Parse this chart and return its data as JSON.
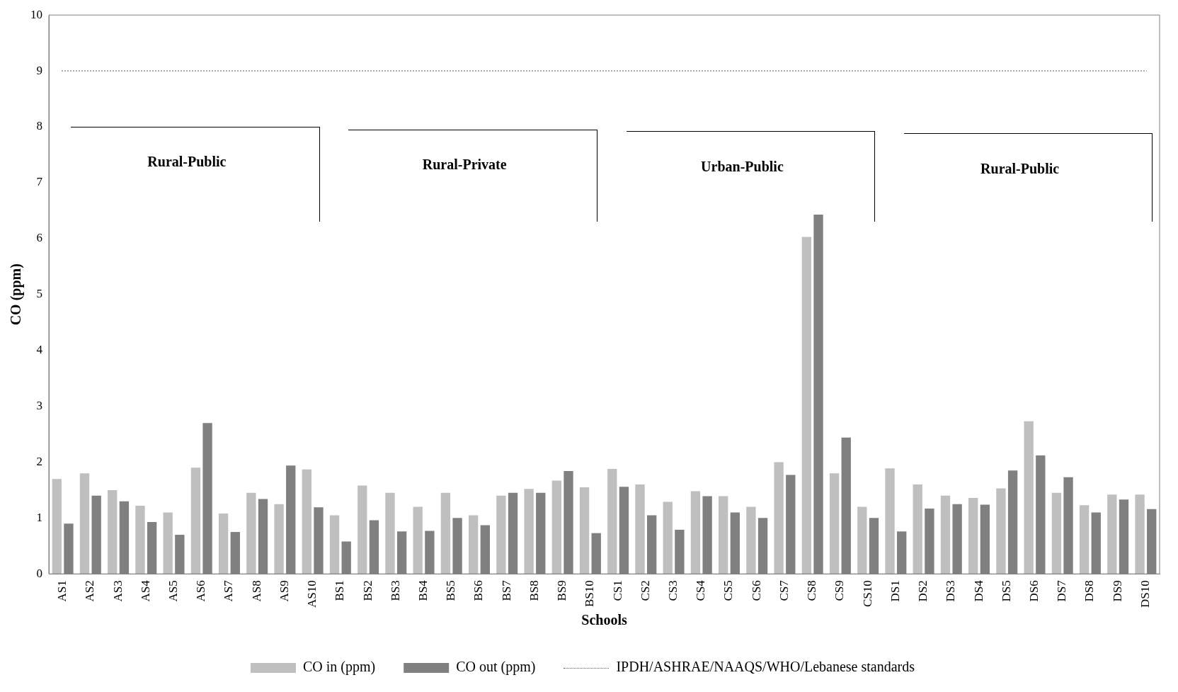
{
  "chart_data": {
    "type": "bar",
    "xlabel": "Schools",
    "ylabel": "CO (ppm)",
    "categories": [
      "AS1",
      "AS2",
      "AS3",
      "AS4",
      "AS5",
      "AS6",
      "AS7",
      "AS8",
      "AS9",
      "AS10",
      "BS1",
      "BS2",
      "BS3",
      "BS4",
      "BS5",
      "BS6",
      "BS7",
      "BS8",
      "BS9",
      "BS10",
      "CS1",
      "CS2",
      "CS3",
      "CS4",
      "CS5",
      "CS6",
      "CS7",
      "CS8",
      "CS9",
      "CS10",
      "DS1",
      "DS2",
      "DS3",
      "DS4",
      "DS5",
      "DS6",
      "DS7",
      "DS8",
      "DS9",
      "DS10"
    ],
    "series": [
      {
        "name": "CO in (ppm)",
        "color": "#bfbfbf",
        "values": [
          1.7,
          1.8,
          1.5,
          1.22,
          1.1,
          1.9,
          1.08,
          1.45,
          1.25,
          1.87,
          1.05,
          1.58,
          1.45,
          1.2,
          1.45,
          1.05,
          1.4,
          1.52,
          1.67,
          1.55,
          1.88,
          1.6,
          1.29,
          1.48,
          1.39,
          1.2,
          2.0,
          6.03,
          1.8,
          1.2,
          1.89,
          1.6,
          1.4,
          1.36,
          1.53,
          2.73,
          1.45,
          1.23,
          1.42,
          1.42
        ]
      },
      {
        "name": "CO out (ppm)",
        "color": "#808080",
        "values": [
          0.9,
          1.4,
          1.3,
          0.93,
          0.7,
          2.7,
          0.75,
          1.34,
          1.94,
          1.19,
          0.58,
          0.96,
          0.76,
          0.77,
          1.0,
          0.87,
          1.45,
          1.45,
          1.84,
          0.73,
          1.56,
          1.05,
          0.79,
          1.39,
          1.1,
          1.0,
          1.77,
          6.43,
          2.44,
          1.0,
          0.76,
          1.17,
          1.25,
          1.24,
          1.85,
          2.12,
          1.73,
          1.1,
          1.33,
          1.16
        ]
      }
    ],
    "ref_lines": [
      {
        "axis": "y",
        "value": 9,
        "label": "IPDH/ASHRAE/NAAQS/WHO/Lebanese standards",
        "color": "#595959",
        "line_style": "dotted"
      }
    ],
    "annotations": [
      "Rural-Public",
      "Rural-Private",
      "Urban-Public",
      "Rural-Public"
    ],
    "ylim": [
      0,
      10
    ],
    "yticks": [
      0,
      1,
      2,
      3,
      4,
      5,
      6,
      7,
      8,
      9,
      10
    ],
    "grid": false,
    "legend": "bottom"
  }
}
